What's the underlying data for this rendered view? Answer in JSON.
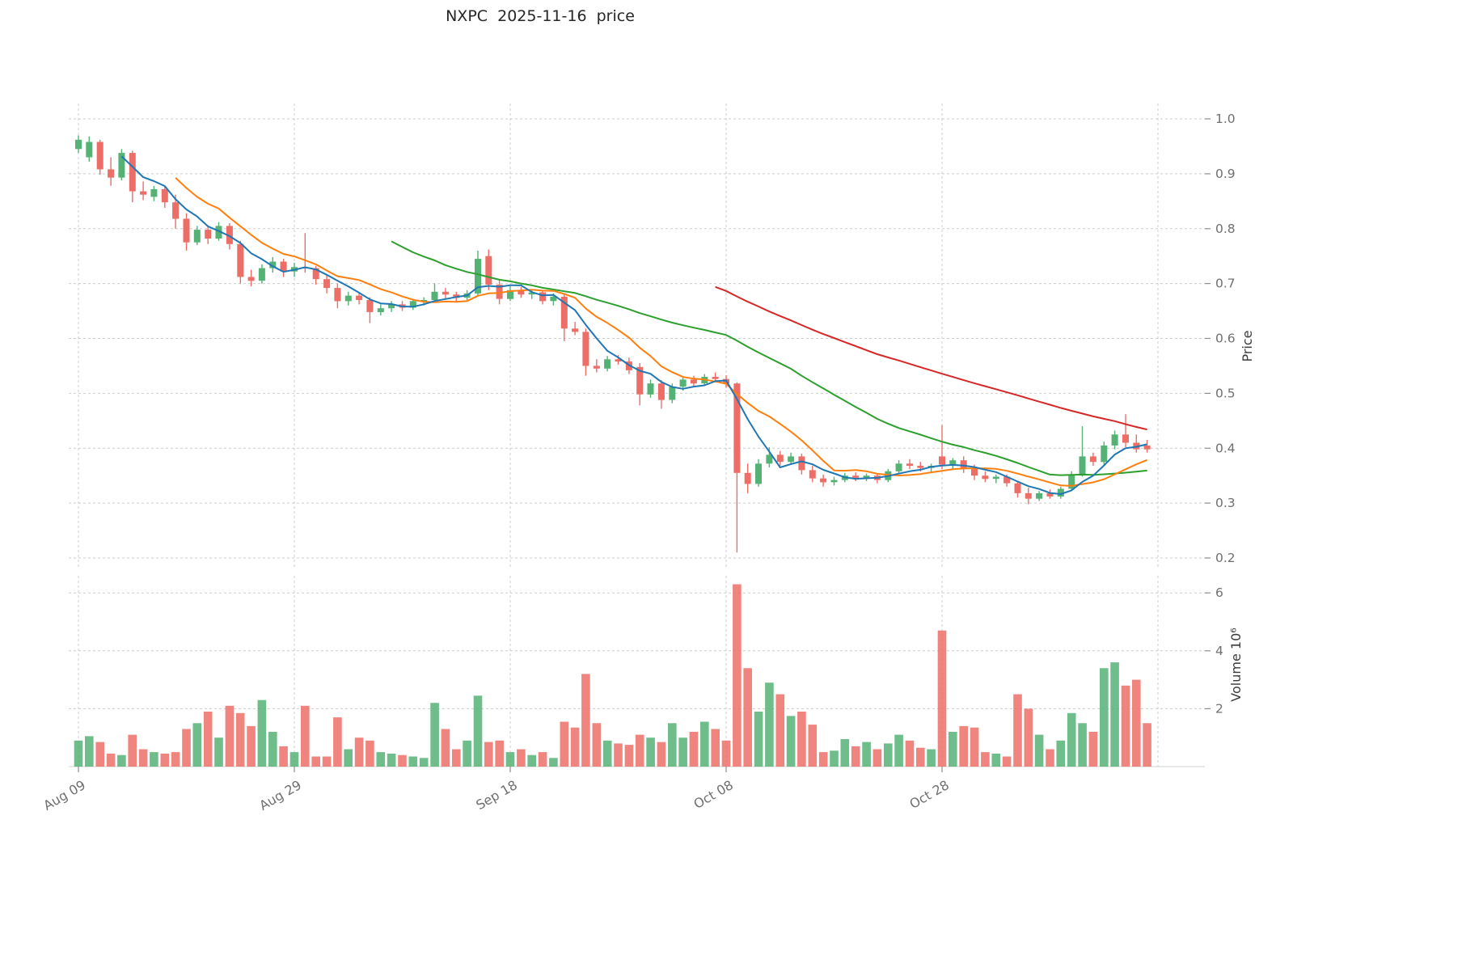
{
  "title": "NXPC  2025-11-16  price",
  "chart_data": {
    "type": "candlestick+volume",
    "title": "NXPC  2025-11-16  price",
    "grid": true,
    "legend_position": "none",
    "price_axis": {
      "label": "Price",
      "side": "right",
      "ticks": [
        0.2,
        0.3,
        0.4,
        0.5,
        0.6,
        0.7,
        0.8,
        0.9,
        1.0
      ],
      "range": [
        0.18,
        1.03
      ]
    },
    "volume_axis": {
      "label": "Volume",
      "unit": "10^6",
      "label_display": "Volume  10⁶",
      "side": "right",
      "ticks": [
        2,
        4,
        6
      ],
      "range": [
        0,
        6.6
      ]
    },
    "x_ticks": [
      {
        "index": 0,
        "label": "Aug 09"
      },
      {
        "index": 20,
        "label": "Aug 29"
      },
      {
        "index": 40,
        "label": "Sep 18"
      },
      {
        "index": 60,
        "label": "Oct 08"
      },
      {
        "index": 80,
        "label": "Oct 28"
      }
    ],
    "x_grid_indices": [
      0,
      20,
      40,
      60,
      80,
      100
    ],
    "colors": {
      "up": "#55b275",
      "down": "#ed6e67",
      "sma5": "#1f77b4",
      "sma10": "#ff7f0e",
      "sma30": "#2ca02c",
      "sma60": "#d62728"
    },
    "overlays": [
      {
        "name": "sma60",
        "window": 60,
        "color": "#d62728"
      },
      {
        "name": "sma30",
        "window": 30,
        "color": "#2ca02c"
      },
      {
        "name": "sma10",
        "window": 10,
        "color": "#ff7f0e"
      },
      {
        "name": "sma5",
        "window": 5,
        "color": "#1f77b4"
      }
    ],
    "candles": [
      [
        0.945,
        0.97,
        0.938,
        0.962,
        0.9
      ],
      [
        0.93,
        0.968,
        0.922,
        0.958,
        1.05
      ],
      [
        0.958,
        0.962,
        0.898,
        0.908,
        0.85
      ],
      [
        0.908,
        0.93,
        0.878,
        0.893,
        0.45
      ],
      [
        0.893,
        0.945,
        0.888,
        0.938,
        0.4
      ],
      [
        0.938,
        0.942,
        0.848,
        0.868,
        1.1
      ],
      [
        0.868,
        0.886,
        0.852,
        0.862,
        0.6
      ],
      [
        0.858,
        0.878,
        0.85,
        0.872,
        0.5
      ],
      [
        0.872,
        0.876,
        0.838,
        0.848,
        0.45
      ],
      [
        0.848,
        0.862,
        0.8,
        0.818,
        0.5
      ],
      [
        0.818,
        0.828,
        0.76,
        0.775,
        1.3
      ],
      [
        0.775,
        0.805,
        0.77,
        0.798,
        1.5
      ],
      [
        0.798,
        0.805,
        0.772,
        0.782,
        1.9
      ],
      [
        0.782,
        0.812,
        0.778,
        0.805,
        1.0
      ],
      [
        0.805,
        0.81,
        0.762,
        0.772,
        2.1
      ],
      [
        0.772,
        0.778,
        0.7,
        0.712,
        1.85
      ],
      [
        0.712,
        0.725,
        0.695,
        0.705,
        1.4
      ],
      [
        0.705,
        0.735,
        0.7,
        0.728,
        2.3
      ],
      [
        0.728,
        0.748,
        0.72,
        0.74,
        1.2
      ],
      [
        0.74,
        0.745,
        0.712,
        0.722,
        0.7
      ],
      [
        0.722,
        0.738,
        0.712,
        0.73,
        0.5
      ],
      [
        0.73,
        0.792,
        0.72,
        0.728,
        2.1
      ],
      [
        0.728,
        0.732,
        0.698,
        0.708,
        0.35
      ],
      [
        0.708,
        0.715,
        0.682,
        0.692,
        0.35
      ],
      [
        0.692,
        0.7,
        0.655,
        0.668,
        1.7
      ],
      [
        0.668,
        0.685,
        0.66,
        0.678,
        0.6
      ],
      [
        0.678,
        0.682,
        0.662,
        0.67,
        1.0
      ],
      [
        0.67,
        0.675,
        0.628,
        0.648,
        0.9
      ],
      [
        0.648,
        0.662,
        0.642,
        0.655,
        0.5
      ],
      [
        0.655,
        0.668,
        0.648,
        0.662,
        0.45
      ],
      [
        0.662,
        0.668,
        0.65,
        0.656,
        0.4
      ],
      [
        0.656,
        0.672,
        0.652,
        0.668,
        0.35
      ],
      [
        0.668,
        0.675,
        0.66,
        0.67,
        0.3
      ],
      [
        0.67,
        0.7,
        0.665,
        0.685,
        2.2
      ],
      [
        0.685,
        0.692,
        0.672,
        0.68,
        1.3
      ],
      [
        0.68,
        0.685,
        0.668,
        0.674,
        0.6
      ],
      [
        0.674,
        0.688,
        0.67,
        0.682,
        0.9
      ],
      [
        0.682,
        0.76,
        0.678,
        0.745,
        2.45
      ],
      [
        0.75,
        0.762,
        0.688,
        0.698,
        0.85
      ],
      [
        0.698,
        0.706,
        0.662,
        0.672,
        0.9
      ],
      [
        0.672,
        0.695,
        0.668,
        0.688,
        0.5
      ],
      [
        0.688,
        0.694,
        0.674,
        0.68,
        0.6
      ],
      [
        0.68,
        0.69,
        0.672,
        0.684,
        0.4
      ],
      [
        0.684,
        0.688,
        0.662,
        0.668,
        0.5
      ],
      [
        0.668,
        0.682,
        0.66,
        0.676,
        0.3
      ],
      [
        0.676,
        0.68,
        0.595,
        0.618,
        1.55
      ],
      [
        0.618,
        0.63,
        0.606,
        0.612,
        1.35
      ],
      [
        0.612,
        0.618,
        0.532,
        0.55,
        3.2
      ],
      [
        0.55,
        0.562,
        0.538,
        0.545,
        1.5
      ],
      [
        0.545,
        0.568,
        0.54,
        0.562,
        0.9
      ],
      [
        0.562,
        0.57,
        0.552,
        0.558,
        0.8
      ],
      [
        0.558,
        0.565,
        0.535,
        0.542,
        0.75
      ],
      [
        0.548,
        0.555,
        0.478,
        0.498,
        1.1
      ],
      [
        0.498,
        0.525,
        0.492,
        0.518,
        1.0
      ],
      [
        0.518,
        0.524,
        0.472,
        0.488,
        0.85
      ],
      [
        0.488,
        0.518,
        0.482,
        0.512,
        1.5
      ],
      [
        0.512,
        0.53,
        0.505,
        0.525,
        1.0
      ],
      [
        0.525,
        0.532,
        0.512,
        0.518,
        1.2
      ],
      [
        0.518,
        0.535,
        0.514,
        0.53,
        1.55
      ],
      [
        0.53,
        0.538,
        0.52,
        0.526,
        1.3
      ],
      [
        0.526,
        0.533,
        0.51,
        0.518,
        0.9
      ],
      [
        0.518,
        0.52,
        0.21,
        0.355,
        6.3
      ],
      [
        0.355,
        0.372,
        0.318,
        0.335,
        3.4
      ],
      [
        0.335,
        0.38,
        0.33,
        0.372,
        1.9
      ],
      [
        0.372,
        0.402,
        0.365,
        0.388,
        2.9
      ],
      [
        0.388,
        0.395,
        0.368,
        0.375,
        2.5
      ],
      [
        0.375,
        0.392,
        0.37,
        0.385,
        1.75
      ],
      [
        0.385,
        0.39,
        0.352,
        0.36,
        1.9
      ],
      [
        0.36,
        0.368,
        0.338,
        0.345,
        1.45
      ],
      [
        0.345,
        0.352,
        0.33,
        0.338,
        0.5
      ],
      [
        0.338,
        0.348,
        0.332,
        0.342,
        0.55
      ],
      [
        0.342,
        0.355,
        0.338,
        0.35,
        0.95
      ],
      [
        0.35,
        0.356,
        0.34,
        0.346,
        0.7
      ],
      [
        0.346,
        0.354,
        0.34,
        0.35,
        0.85
      ],
      [
        0.35,
        0.354,
        0.336,
        0.342,
        0.6
      ],
      [
        0.342,
        0.362,
        0.338,
        0.358,
        0.8
      ],
      [
        0.358,
        0.378,
        0.354,
        0.372,
        1.1
      ],
      [
        0.372,
        0.38,
        0.362,
        0.368,
        0.9
      ],
      [
        0.368,
        0.375,
        0.358,
        0.364,
        0.65
      ],
      [
        0.364,
        0.372,
        0.356,
        0.368,
        0.6
      ],
      [
        0.385,
        0.442,
        0.362,
        0.37,
        4.7
      ],
      [
        0.37,
        0.382,
        0.362,
        0.378,
        1.2
      ],
      [
        0.378,
        0.385,
        0.355,
        0.362,
        1.4
      ],
      [
        0.362,
        0.37,
        0.342,
        0.35,
        1.35
      ],
      [
        0.35,
        0.358,
        0.338,
        0.344,
        0.5
      ],
      [
        0.344,
        0.352,
        0.336,
        0.348,
        0.45
      ],
      [
        0.348,
        0.352,
        0.33,
        0.336,
        0.35
      ],
      [
        0.336,
        0.34,
        0.31,
        0.318,
        2.5
      ],
      [
        0.318,
        0.328,
        0.298,
        0.308,
        2.0
      ],
      [
        0.308,
        0.322,
        0.304,
        0.318,
        1.1
      ],
      [
        0.318,
        0.325,
        0.308,
        0.312,
        0.6
      ],
      [
        0.312,
        0.33,
        0.308,
        0.326,
        0.9
      ],
      [
        0.326,
        0.358,
        0.322,
        0.352,
        1.85
      ],
      [
        0.352,
        0.44,
        0.348,
        0.385,
        1.5
      ],
      [
        0.385,
        0.392,
        0.368,
        0.375,
        1.2
      ],
      [
        0.375,
        0.412,
        0.37,
        0.405,
        3.4
      ],
      [
        0.405,
        0.432,
        0.398,
        0.425,
        3.6
      ],
      [
        0.425,
        0.462,
        0.402,
        0.41,
        2.8
      ],
      [
        0.41,
        0.425,
        0.392,
        0.398,
        3.0
      ],
      [
        0.405,
        0.415,
        0.392,
        0.398,
        1.5
      ]
    ]
  }
}
